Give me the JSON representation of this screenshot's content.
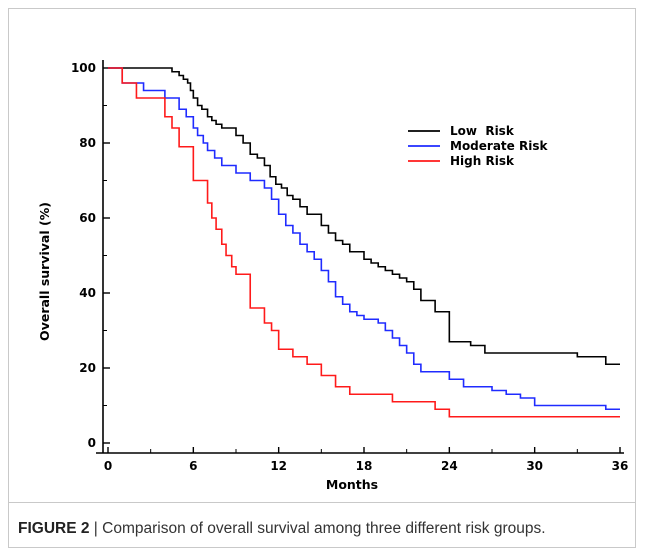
{
  "caption": {
    "label": "FIGURE 2",
    "separator": " | ",
    "text": "Comparison of overall survival among three different risk groups."
  },
  "chart_data": {
    "type": "line",
    "step": true,
    "xlabel": "Months",
    "ylabel": "Overall survival (%)",
    "xlim": [
      0,
      36
    ],
    "ylim": [
      0,
      100
    ],
    "xticks": [
      0,
      6,
      12,
      18,
      24,
      30,
      36
    ],
    "yticks": [
      0,
      20,
      40,
      60,
      80,
      100
    ],
    "grid": false,
    "legend_position": "top-right",
    "series": [
      {
        "name": "Low  Risk",
        "color": "#000000",
        "x": [
          0,
          4,
          4.5,
          5,
          5.3,
          5.6,
          5.8,
          6.0,
          6.3,
          6.6,
          7.0,
          7.3,
          7.6,
          8.0,
          9.0,
          9.5,
          10.0,
          10.5,
          11.0,
          11.4,
          11.8,
          12.2,
          12.6,
          13.0,
          13.5,
          14.0,
          15.0,
          15.5,
          16.0,
          16.5,
          17.0,
          18.0,
          18.5,
          19.0,
          19.5,
          20.0,
          20.5,
          21.0,
          21.5,
          22.0,
          23.0,
          24.0,
          25.5,
          26.5,
          33.0,
          35.0,
          36.0
        ],
        "y": [
          100,
          100,
          99,
          98,
          97,
          96,
          94,
          92,
          90,
          89,
          87,
          86,
          85,
          84,
          82,
          80,
          77,
          76,
          74,
          71,
          69,
          68,
          66,
          65,
          63,
          61,
          58,
          56,
          54,
          53,
          51,
          49,
          48,
          47,
          46,
          45,
          44,
          43,
          41,
          38,
          35,
          27,
          26,
          24,
          23,
          21,
          21
        ]
      },
      {
        "name": "Moderate Risk",
        "color": "#1f2bff",
        "x": [
          0,
          1.0,
          2.5,
          4.0,
          5.0,
          5.5,
          6.0,
          6.3,
          6.7,
          7.0,
          7.5,
          8.0,
          9.0,
          10.0,
          11.0,
          11.5,
          12.0,
          12.5,
          13.0,
          13.5,
          14.0,
          14.5,
          15.0,
          15.5,
          16.0,
          16.5,
          17.0,
          17.5,
          18.0,
          19.0,
          19.5,
          20.0,
          20.5,
          21.0,
          21.5,
          22.0,
          24.0,
          25.0,
          27.0,
          28.0,
          29.0,
          30.0,
          34.0,
          35.0,
          36.0
        ],
        "y": [
          100,
          96,
          94,
          92,
          89,
          87,
          84,
          82,
          80,
          78,
          76,
          74,
          72,
          70,
          68,
          65,
          61,
          58,
          56,
          53,
          51,
          49,
          46,
          43,
          39,
          37,
          35,
          34,
          33,
          32,
          30,
          28,
          26,
          24,
          21,
          19,
          17,
          15,
          14,
          13,
          12,
          10,
          10,
          9,
          9
        ]
      },
      {
        "name": "High Risk",
        "color": "#ff1a1a",
        "x": [
          0,
          1.0,
          2.0,
          4.0,
          4.5,
          5.0,
          6.0,
          7.0,
          7.3,
          7.6,
          8.0,
          8.3,
          8.7,
          9.0,
          10.0,
          11.0,
          11.5,
          12.0,
          13.0,
          14.0,
          15.0,
          16.0,
          17.0,
          20.0,
          23.0,
          24.0,
          30.0,
          36.0
        ],
        "y": [
          100,
          96,
          92,
          87,
          84,
          79,
          70,
          64,
          60,
          57,
          53,
          50,
          47,
          45,
          36,
          32,
          30,
          25,
          23,
          21,
          18,
          15,
          13,
          11,
          9,
          7,
          7,
          7
        ]
      }
    ]
  }
}
